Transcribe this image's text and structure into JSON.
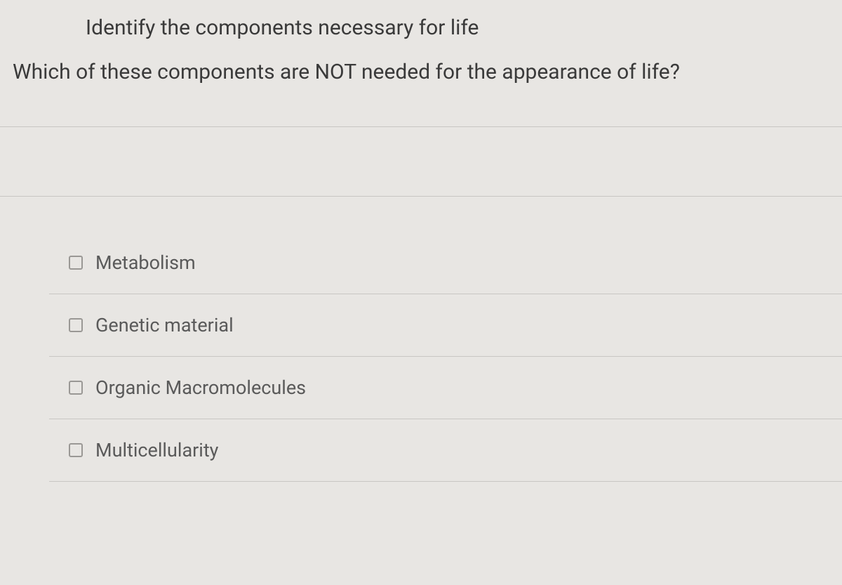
{
  "header": {
    "title": "Identify the components necessary for life"
  },
  "question": {
    "text": "Which of these components are NOT needed for the appearance of life?"
  },
  "options": [
    {
      "label": "Metabolism",
      "checked": false
    },
    {
      "label": "Genetic material",
      "checked": false
    },
    {
      "label": "Organic Macromolecules",
      "checked": false
    },
    {
      "label": "Multicellularity",
      "checked": false
    }
  ],
  "colors": {
    "background": "#e8e6e3",
    "text_primary": "#3a3a3a",
    "text_secondary": "#5a5a5a",
    "border": "#c8c6c3",
    "checkbox_border": "#9a9895"
  }
}
